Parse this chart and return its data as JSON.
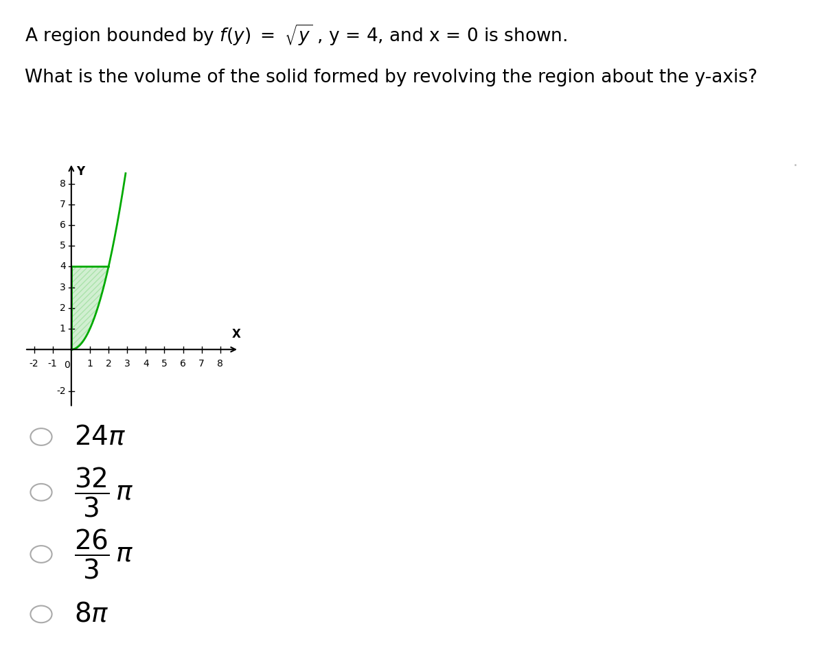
{
  "bg_color": "#ffffff",
  "text_color": "#000000",
  "curve_color": "#00aa00",
  "shade_color": "#00aa00",
  "shade_alpha": 0.18,
  "hatch_pattern": "////",
  "hatch_color": "#00aa00",
  "circle_color": "#aaaaaa",
  "graph_xlim": [
    -2.5,
    9.0
  ],
  "graph_ylim": [
    -2.8,
    9.0
  ],
  "x_ticks": [
    -2,
    -1,
    1,
    2,
    3,
    4,
    5,
    6,
    7,
    8
  ],
  "y_ticks": [
    -2,
    1,
    2,
    3,
    4,
    5,
    6,
    7,
    8
  ],
  "title_fontsize": 19,
  "question_fontsize": 19,
  "tick_fontsize": 10,
  "choice_fontsize": 28,
  "axis_label_fontsize": 12
}
